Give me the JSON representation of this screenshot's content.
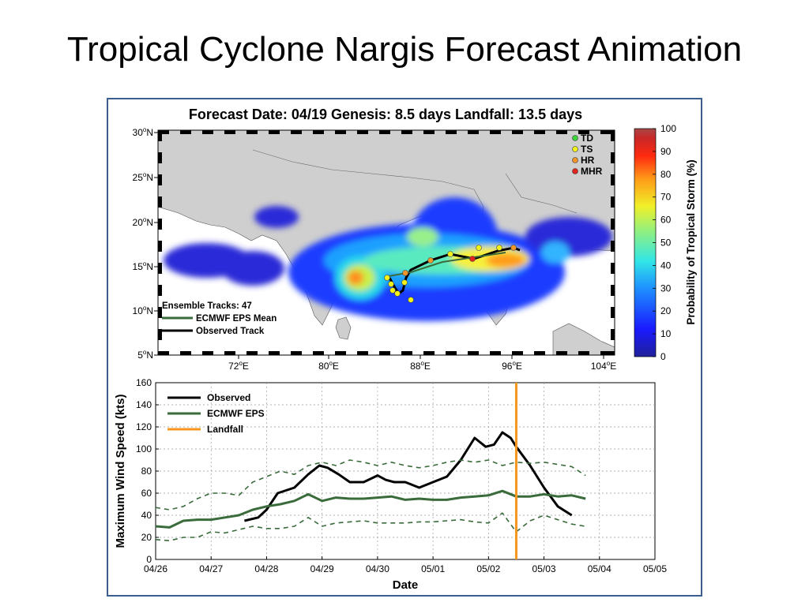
{
  "slide": {
    "title": "Tropical Cyclone Nargis Forecast Animation"
  },
  "map": {
    "title": "Forecast Date: 04/19  Genesis: 8.5 days  Landfall: 13.5 days",
    "lat_ticks": [
      "30",
      "25",
      "20",
      "15",
      "10",
      "5"
    ],
    "lat_suffix": "N",
    "lon_ticks": [
      "72",
      "80",
      "88",
      "96",
      "104"
    ],
    "lon_suffix": "E",
    "degree": "o",
    "legend": [
      {
        "label": "TD",
        "color": "#3cd33c"
      },
      {
        "label": "TS",
        "color": "#f2f21a"
      },
      {
        "label": "HR",
        "color": "#f0962a"
      },
      {
        "label": "MHR",
        "color": "#e0261c"
      }
    ],
    "track_legend": {
      "count_label": "Ensemble Tracks: 47",
      "mean_label": "ECMWF EPS Mean",
      "observed_label": "Observed Track"
    },
    "colorbar": {
      "label": "Probability of Tropical Storm (%)",
      "ticks": [
        "100",
        "90",
        "80",
        "70",
        "60",
        "50",
        "40",
        "30",
        "20",
        "10",
        "0"
      ]
    },
    "land_color": "#cfcfcf",
    "ocean_color": "#ffffff"
  },
  "chart_data": {
    "type": "line",
    "xlabel": "Date",
    "ylabel": "Maximum Wind Speed (kts)",
    "x_tick_labels": [
      "04/26",
      "04/27",
      "04/28",
      "04/29",
      "04/30",
      "05/01",
      "05/02",
      "05/03",
      "05/04",
      "05/05"
    ],
    "xlim": [
      0,
      9
    ],
    "ylim": [
      0,
      160
    ],
    "y_ticks": [
      0,
      20,
      40,
      60,
      80,
      100,
      120,
      140,
      160
    ],
    "grid": true,
    "legend_position": "top-left",
    "legend": [
      {
        "label": "Observed",
        "color": "#000000"
      },
      {
        "label": "ECMWF EPS",
        "color": "#3a6b3a"
      },
      {
        "label": "Landfall",
        "color": "#f5961e"
      }
    ],
    "landfall_x": 6.5,
    "series": [
      {
        "name": "Observed",
        "color": "#000000",
        "x": [
          1.6,
          1.85,
          2.0,
          2.2,
          2.5,
          2.75,
          2.95,
          3.1,
          3.3,
          3.5,
          3.75,
          4.0,
          4.15,
          4.3,
          4.5,
          4.75,
          5.0,
          5.25,
          5.5,
          5.75,
          5.95,
          6.1,
          6.25,
          6.4,
          6.5,
          6.75,
          7.0,
          7.25,
          7.5
        ],
        "y": [
          35,
          38,
          45,
          60,
          65,
          77,
          85,
          83,
          77,
          70,
          70,
          76,
          72,
          70,
          70,
          65,
          70,
          75,
          90,
          110,
          102,
          104,
          115,
          110,
          102,
          85,
          65,
          48,
          40
        ]
      },
      {
        "name": "ECMWF EPS",
        "color": "#3a6b3a",
        "x": [
          0,
          0.25,
          0.5,
          0.75,
          1.0,
          1.25,
          1.5,
          1.75,
          2.0,
          2.25,
          2.5,
          2.75,
          3.0,
          3.25,
          3.5,
          3.75,
          4.0,
          4.25,
          4.5,
          4.75,
          5.0,
          5.25,
          5.5,
          5.75,
          6.0,
          6.25,
          6.5,
          6.75,
          7.0,
          7.25,
          7.5,
          7.75
        ],
        "y": [
          30,
          29,
          35,
          36,
          36,
          38,
          40,
          45,
          48,
          50,
          53,
          59,
          53,
          56,
          55,
          55,
          56,
          57,
          54,
          55,
          54,
          54,
          56,
          57,
          58,
          62,
          57,
          57,
          59,
          57,
          58,
          55
        ]
      },
      {
        "name": "",
        "color": "#3a6b3a",
        "dash": true,
        "x": [
          0,
          0.25,
          0.5,
          0.75,
          1.0,
          1.25,
          1.5,
          1.75,
          2.0,
          2.25,
          2.5,
          2.75,
          3.0,
          3.25,
          3.5,
          3.75,
          4.0,
          4.25,
          4.5,
          4.75,
          5.0,
          5.25,
          5.5,
          5.75,
          6.0,
          6.25,
          6.5,
          6.75,
          7.0,
          7.25,
          7.5,
          7.75
        ],
        "y": [
          47,
          45,
          48,
          55,
          60,
          60,
          58,
          70,
          75,
          80,
          77,
          85,
          88,
          85,
          90,
          88,
          85,
          88,
          85,
          83,
          85,
          88,
          90,
          88,
          90,
          85,
          88,
          87,
          88,
          86,
          84,
          76
        ]
      },
      {
        "name": "",
        "color": "#3a6b3a",
        "dash": true,
        "x": [
          0,
          0.25,
          0.5,
          0.75,
          1.0,
          1.25,
          1.5,
          1.75,
          2.0,
          2.25,
          2.5,
          2.75,
          3.0,
          3.25,
          3.5,
          3.75,
          4.0,
          4.25,
          4.5,
          4.75,
          5.0,
          5.25,
          5.5,
          5.75,
          6.0,
          6.25,
          6.5,
          6.75,
          7.0,
          7.25,
          7.5,
          7.75
        ],
        "y": [
          18,
          17,
          20,
          20,
          25,
          24,
          27,
          30,
          28,
          28,
          30,
          38,
          30,
          33,
          34,
          35,
          33,
          33,
          33,
          34,
          34,
          35,
          36,
          34,
          33,
          42,
          25,
          35,
          40,
          36,
          32,
          30
        ]
      }
    ]
  }
}
